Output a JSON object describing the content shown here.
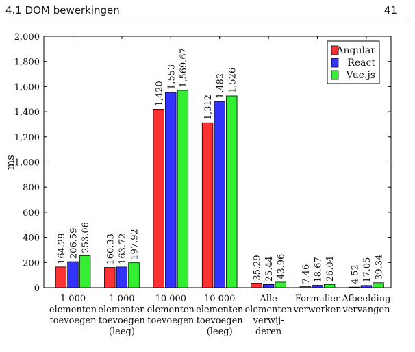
{
  "header": {
    "section_title": "4.1 DOM bewerkingen",
    "page_number": "41"
  },
  "chart_data": {
    "type": "bar",
    "ylabel": "ms",
    "ylim": [
      0,
      2000
    ],
    "yticks": [
      "0",
      "200",
      "400",
      "600",
      "800",
      "1,000",
      "1,200",
      "1,400",
      "1,600",
      "1,800",
      "2,000"
    ],
    "ytick_values": [
      0,
      200,
      400,
      600,
      800,
      1000,
      1200,
      1400,
      1600,
      1800,
      2000
    ],
    "legend_position": "top-right",
    "categories": [
      [
        "1 000",
        "elementen",
        "toevoegen"
      ],
      [
        "1 000",
        "elementen",
        "toevoegen",
        "(leeg)"
      ],
      [
        "10 000",
        "elementen",
        "toevoegen"
      ],
      [
        "10 000",
        "elementen",
        "toevoegen",
        "(leeg)"
      ],
      [
        "Alle",
        "elementen",
        "verwij-",
        "deren"
      ],
      [
        "Formulier",
        "verwerken"
      ],
      [
        "Afbeelding",
        "vervangen"
      ]
    ],
    "series": [
      {
        "name": "Angular",
        "color": "#ff3333",
        "values": [
          164.29,
          160.33,
          1420,
          1312,
          35.29,
          7.46,
          4.52
        ],
        "labels": [
          "164.29",
          "160.33",
          "1,420",
          "1,312",
          "35.29",
          "7.46",
          "4.52"
        ]
      },
      {
        "name": "React",
        "color": "#3333ff",
        "values": [
          206.59,
          163.72,
          1553,
          1482,
          25.44,
          18.67,
          17.05
        ],
        "labels": [
          "206.59",
          "163.72",
          "1,553",
          "1,482",
          "25.44",
          "18.67",
          "17.05"
        ]
      },
      {
        "name": "Vue.js",
        "color": "#33ee33",
        "values": [
          253.06,
          197.92,
          1569.67,
          1526,
          43.96,
          26.04,
          39.34
        ],
        "labels": [
          "253.06",
          "197.92",
          "1,569.67",
          "1,526",
          "43.96",
          "26.04",
          "39.34"
        ]
      }
    ]
  }
}
